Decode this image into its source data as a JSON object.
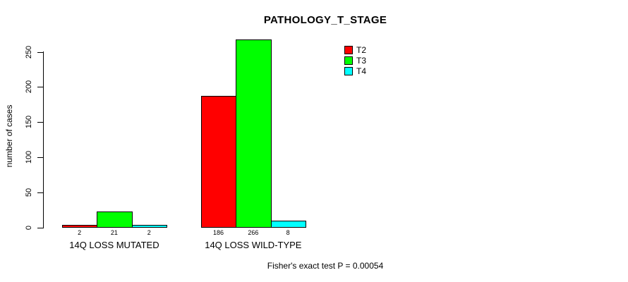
{
  "chart_data": {
    "type": "bar",
    "title": "PATHOLOGY_T_STAGE",
    "ylabel": "number of cases",
    "xlabel": "",
    "categories": [
      "14Q LOSS MUTATED",
      "14Q LOSS WILD-TYPE"
    ],
    "series": [
      {
        "name": "T2",
        "color": "#ff0000",
        "values": [
          2,
          186
        ]
      },
      {
        "name": "T3",
        "color": "#00ff00",
        "values": [
          21,
          266
        ]
      },
      {
        "name": "T4",
        "color": "#00ffff",
        "values": [
          2,
          8
        ]
      }
    ],
    "bar_value_labels": [
      [
        "2",
        "21",
        "2"
      ],
      [
        "186",
        "266",
        "8"
      ]
    ],
    "yticks": [
      0,
      50,
      100,
      150,
      200,
      250
    ],
    "ylim": [
      0,
      266
    ],
    "grid": false,
    "bar_border_color": "#000000",
    "legend_position": "top-right-inside",
    "caption": "Fisher's exact test P = 0.00054"
  }
}
